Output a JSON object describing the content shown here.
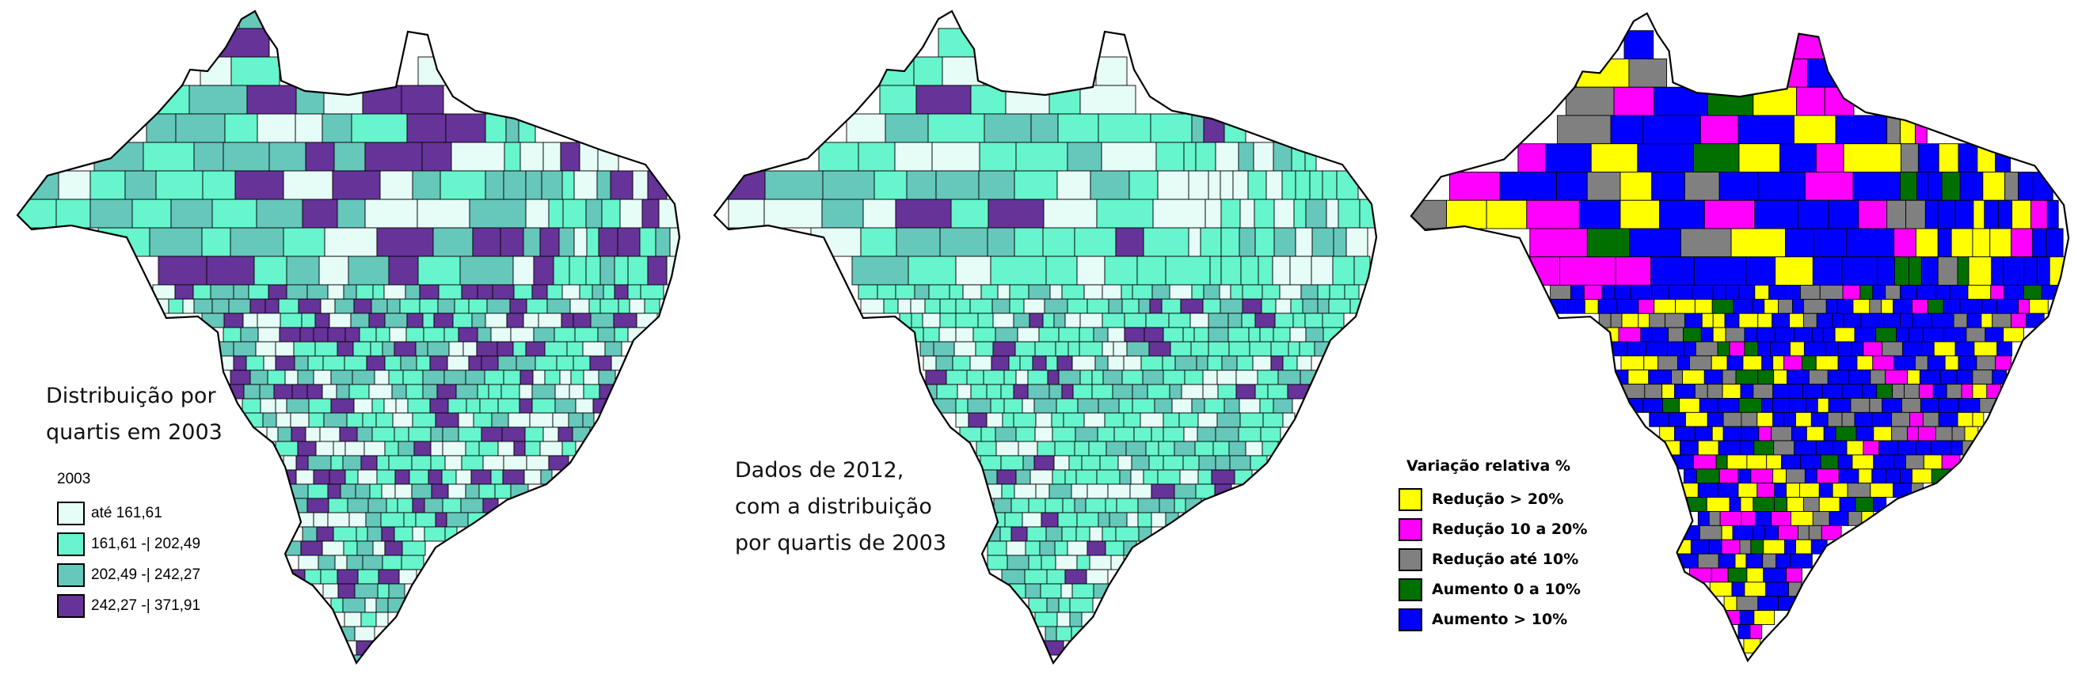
{
  "maps": [
    {
      "id": "map-2003",
      "caption_lines": [
        "Distribuição por",
        "quartis em 2003"
      ],
      "legend": {
        "title": "2003",
        "items": [
          {
            "label": "até 161,61",
            "color": "#e6fcf6"
          },
          {
            "label": "161,61 -| 202,49",
            "color": "#66f5cc"
          },
          {
            "label": "202,49 -| 242,27",
            "color": "#66c7bb"
          },
          {
            "label": "242,27 -| 371,91",
            "color": "#663399"
          }
        ]
      },
      "class_shares": [
        0.24,
        0.3,
        0.24,
        0.22
      ]
    },
    {
      "id": "map-2012",
      "caption_lines": [
        "Dados de 2012,",
        "com a distribuição",
        "por quartis de 2003"
      ],
      "legend_ref": "map-2003",
      "class_shares": [
        0.22,
        0.5,
        0.22,
        0.06
      ]
    },
    {
      "id": "map-variacao",
      "legend": {
        "title": "Variação relativa %",
        "items": [
          {
            "label": "Redução > 20%",
            "color": "#ffff00"
          },
          {
            "label": "Redução 10 a 20%",
            "color": "#ff00ff"
          },
          {
            "label": "Redução até 10%",
            "color": "#808080"
          },
          {
            "label": "Aumento 0 a 10%",
            "color": "#007000"
          },
          {
            "label": "Aumento > 10%",
            "color": "#0000ff"
          }
        ]
      },
      "class_shares": [
        0.2,
        0.14,
        0.16,
        0.06,
        0.44
      ]
    }
  ]
}
